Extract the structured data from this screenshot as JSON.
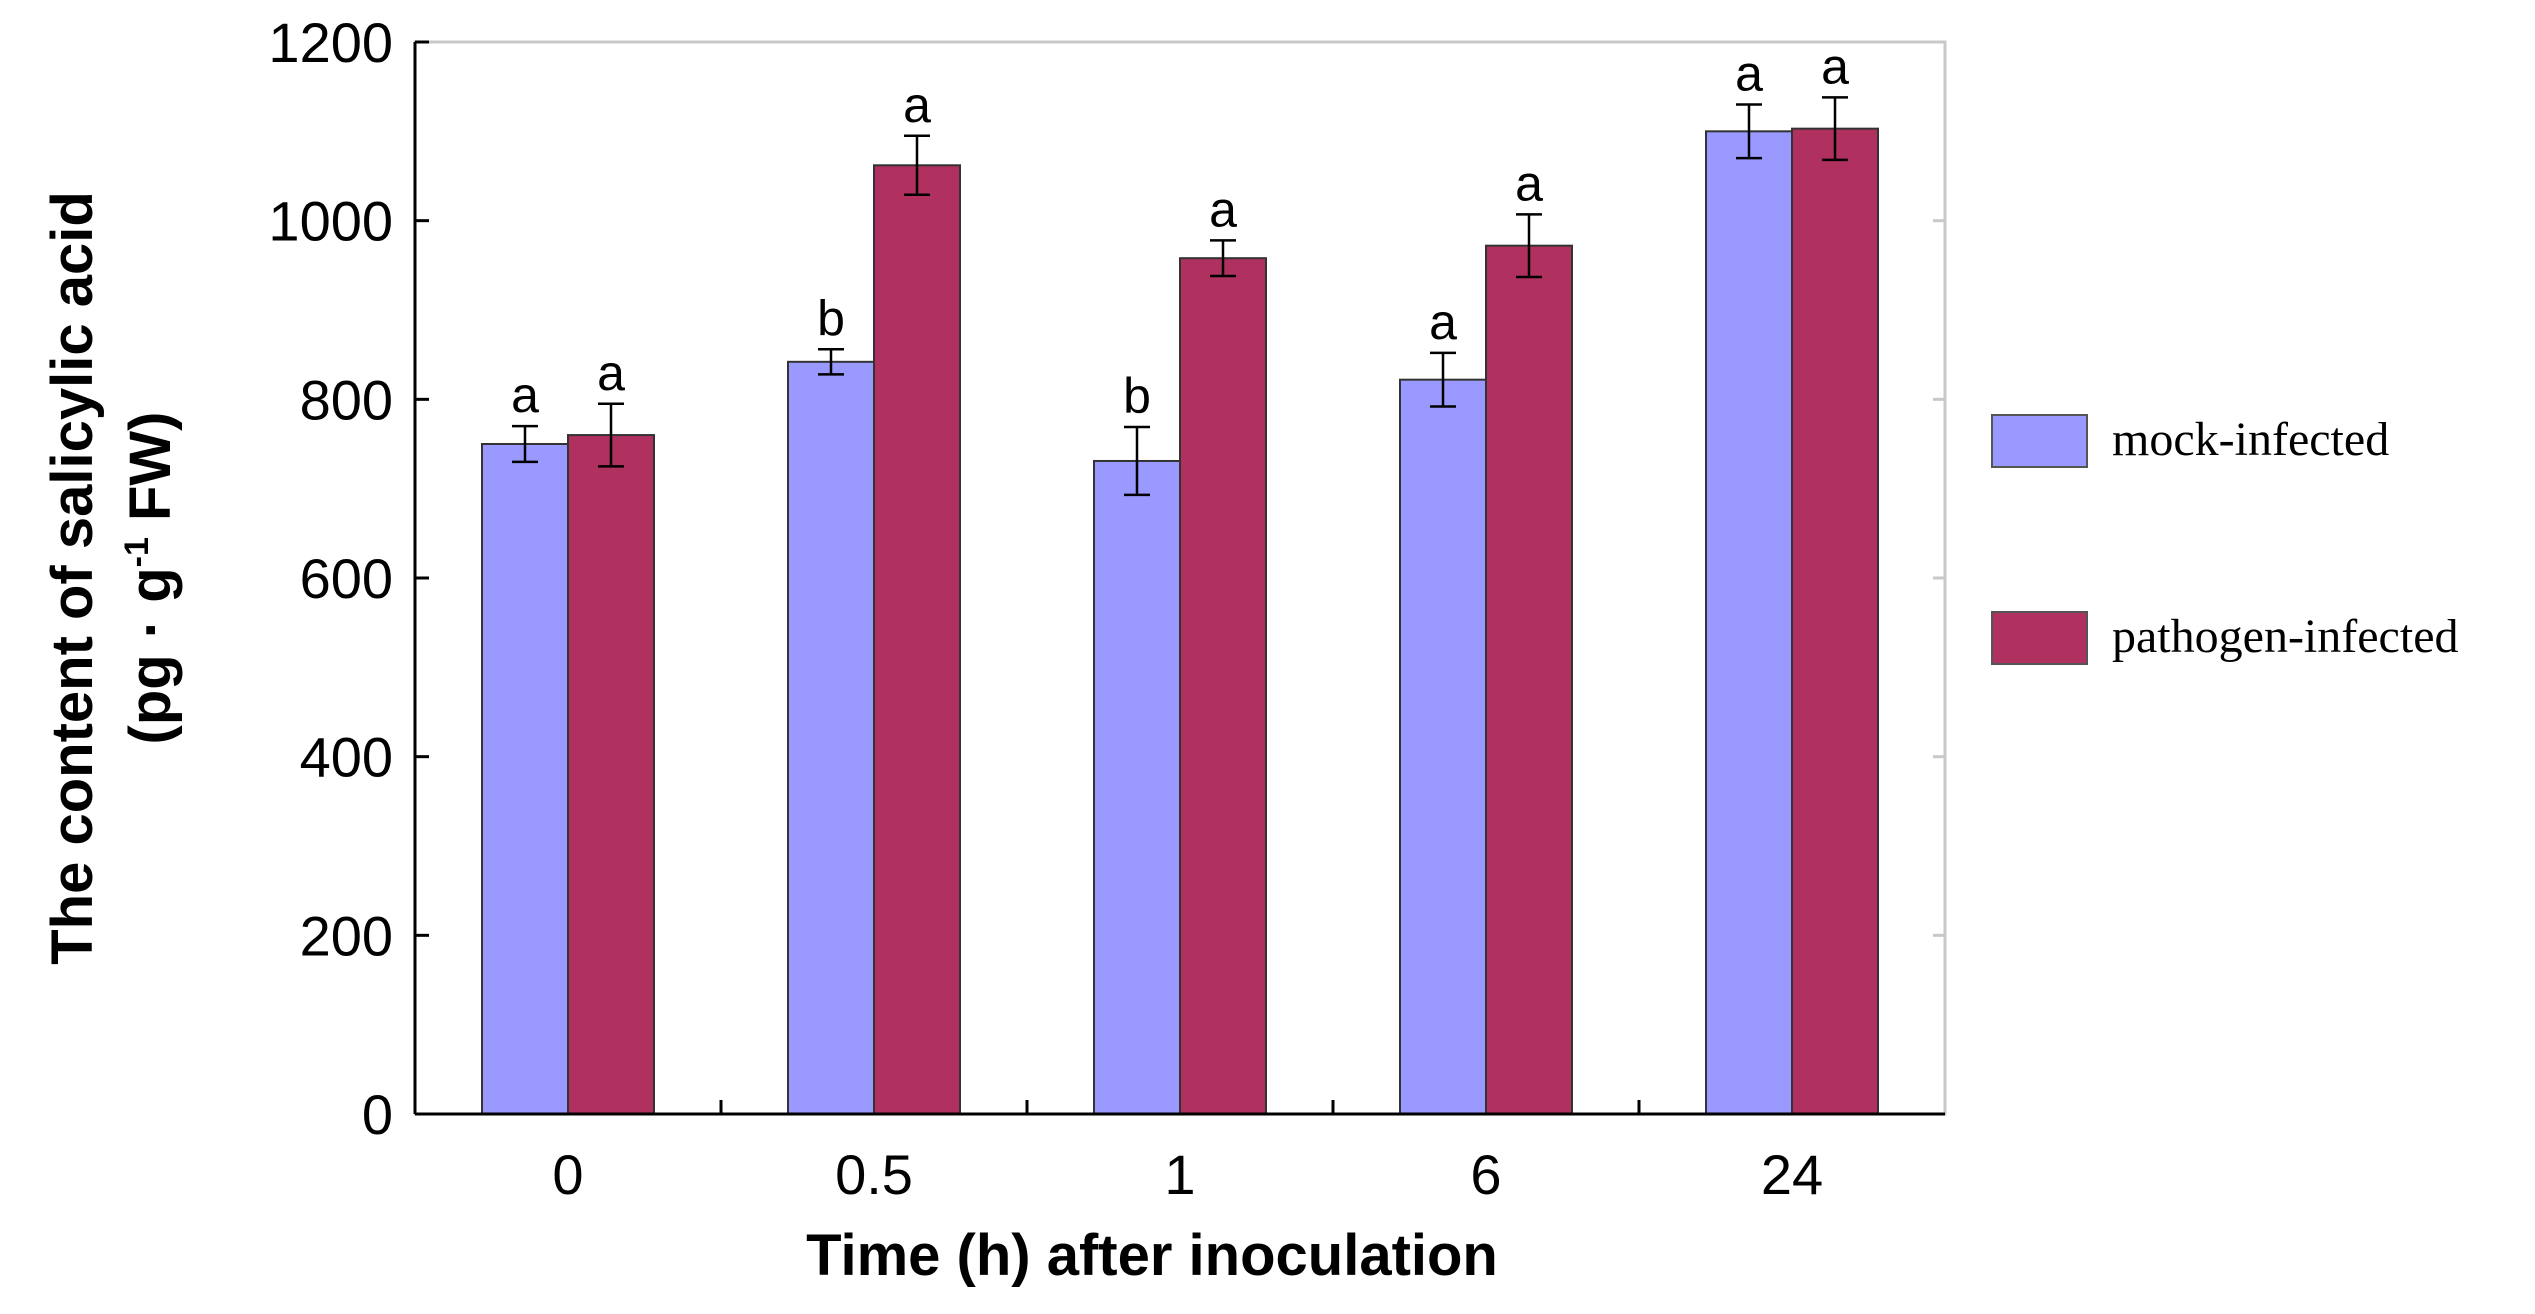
{
  "chart_data": {
    "type": "bar",
    "title": "",
    "xlabel": "Time (h) after inoculation",
    "ylabel_line1": "The content of salicylic acid",
    "ylabel_line2": "(pg · g-1 FW)",
    "ylabel_line2_parts": {
      "before": "(pg · g",
      "superscript": "-1",
      "after": " FW)"
    },
    "ylim": [
      0,
      1200
    ],
    "yticks": [
      "0",
      "200",
      "400",
      "600",
      "800",
      "1000",
      "1200"
    ],
    "categories": [
      "0",
      "0.5",
      "1",
      "6",
      "24"
    ],
    "series": [
      {
        "name": "mock-infected",
        "color": "#9999ff",
        "values": [
          750,
          842,
          731,
          822,
          1100
        ],
        "errors": [
          20,
          14,
          38,
          30,
          30
        ],
        "significance": [
          "a",
          "b",
          "b",
          "a",
          "a"
        ]
      },
      {
        "name": "pathogen-infected",
        "color": "#b03060",
        "values": [
          760,
          1062,
          958,
          972,
          1103
        ],
        "errors": [
          35,
          33,
          20,
          35,
          35
        ],
        "significance": [
          "a",
          "a",
          "a",
          "a",
          "a"
        ]
      }
    ],
    "legend_position": "right"
  }
}
